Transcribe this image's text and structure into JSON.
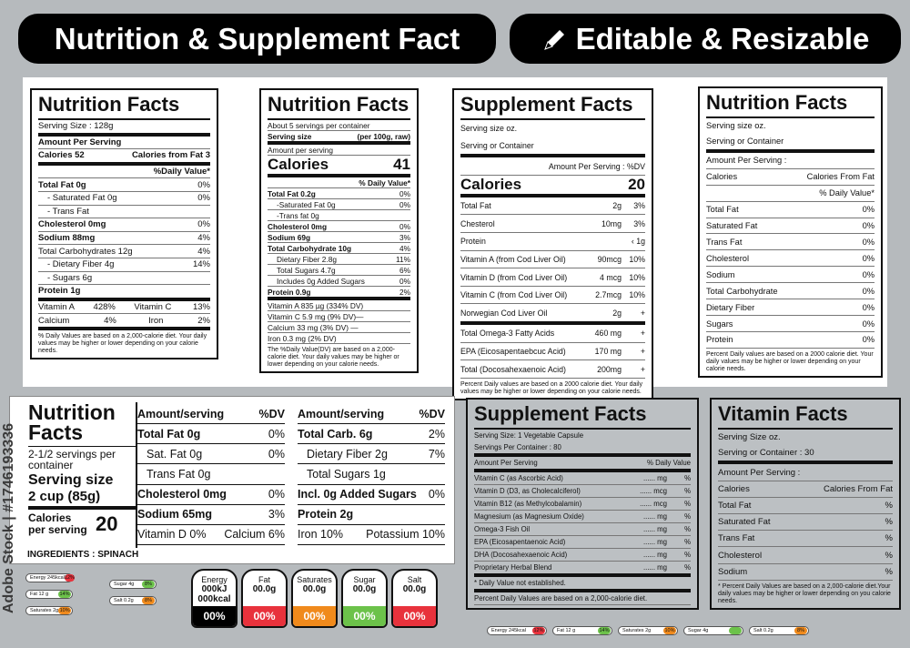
{
  "banner": {
    "left": "Nutrition & Supplement Fact",
    "right": "Editable & Resizable"
  },
  "labels": [
    {
      "title": "Nutrition Facts",
      "rows": [
        [
          "Serving Size : 128g"
        ],
        [
          "Amount Per Serving"
        ],
        [
          "Calories 52",
          "Calories from Fat 3"
        ],
        [
          "%Daily Value*"
        ],
        [
          "Total Fat  0g",
          "0%"
        ],
        [
          "- Saturated Fat  0g",
          "0%"
        ],
        [
          "- Trans Fat"
        ],
        [
          "Cholesterol  0mg",
          "0%"
        ],
        [
          "Sodium  88mg",
          "4%"
        ],
        [
          "Total Carbohydrates  12g",
          "4%"
        ],
        [
          "- Dietary Fiber  4g",
          "14%"
        ],
        [
          "- Sugars  6g"
        ],
        [
          "Protein  1g"
        ],
        [
          "Vitamin A",
          "428%",
          "Vitamin C",
          "13%"
        ],
        [
          "Calcium",
          "4%",
          "Iron",
          "2%"
        ]
      ],
      "note": "% Daily Values are based on a 2,000-calorie diet. Your daily values may be higher or lower depending on your calorie needs."
    },
    {
      "title": "Nutrition Facts",
      "rows": [
        [
          "About 5 servings per container"
        ],
        [
          "Serving size",
          "(per 100g, raw)"
        ],
        [
          "Amount per serving"
        ],
        [
          "Calories",
          "41"
        ],
        [
          "% Daily Value*"
        ],
        [
          "Total Fat 0.2g",
          "0%"
        ],
        [
          "-Saturated  Fat 0g",
          "0%"
        ],
        [
          "-Trans fat  0g"
        ],
        [
          "Cholesterol 0mg",
          "0%"
        ],
        [
          "Sodium 69g",
          "3%"
        ],
        [
          "Total Carbohydrate 10g",
          "4%"
        ],
        [
          "Dietary Fiber  2.8g",
          "11%"
        ],
        [
          "Total  Sugars 4.7g",
          "6%"
        ],
        [
          "Includes 0g Added Sugars",
          "0%"
        ],
        [
          "Protein 0.9g",
          "2%"
        ],
        [
          "Vitamin A  835 µg (334% DV)"
        ],
        [
          "Vitamin C 5.9 mg (9% DV)—"
        ],
        [
          "Calcium 33 mg (3% DV) —"
        ],
        [
          "Iron 0.3 mg (2% DV)"
        ]
      ],
      "note": "The %Daily Value(DV) are based on a 2,000-calorie diet. Your daily values may be higher or lower depending on your calorie needs."
    },
    {
      "title": "Supplement Facts",
      "rows": [
        [
          "Serving size oz."
        ],
        [
          "Serving or Container"
        ],
        [
          "Amount Per Serving : %DV"
        ],
        [
          "Calories",
          "20"
        ],
        [
          "Total Fat",
          "2g",
          "3%"
        ],
        [
          "Chesterol",
          "10mg",
          "3%"
        ],
        [
          "Protein",
          "‹ 1g"
        ],
        [
          "Vitamin A (from Cod Liver Oil)",
          "90mcg",
          "10%"
        ],
        [
          "Vitamin D (from Cod Liver Oil)",
          "4 mcg",
          "10%"
        ],
        [
          "Vitamin C (from Cod Liver Oil)",
          "2.7mcg",
          "10%"
        ],
        [
          "Norwegian Cod Liver Oil",
          "2g",
          "+"
        ],
        [
          "Total Omega-3 Fatty Acids",
          "460 mg",
          "+"
        ],
        [
          "EPA (Eicosapentaebcuc Acid)",
          "170 mg",
          "+"
        ],
        [
          "Total (Docosahexaenoic Acid)",
          "200mg",
          "+"
        ]
      ],
      "note": "Percent Daily values are based on a 2000 calorie diet. Your daily values may be higher or lower depending on your calorie needs."
    },
    {
      "title": "Nutrition Facts",
      "rows": [
        [
          "Serving size oz."
        ],
        [
          "Serving or Container"
        ],
        [
          "Amount Per Serving :"
        ],
        [
          "Calories",
          "Calories From Fat"
        ],
        [
          "% Daily Value*"
        ],
        [
          "Total Fat",
          "0%"
        ],
        [
          "Saturated Fat",
          "0%"
        ],
        [
          "Trans  Fat",
          "0%"
        ],
        [
          "Cholesterol",
          "0%"
        ],
        [
          "Sodium",
          "0%"
        ],
        [
          "Total Carbohydrate",
          "0%"
        ],
        [
          "Dietary Fiber",
          "0%"
        ],
        [
          "Sugars",
          "0%"
        ],
        [
          "Protein",
          "0%"
        ]
      ],
      "note": "Percent Daily values are based on a 2000 calorie diet. Your daily values may be higher or lower depending on your calorie needs."
    },
    {
      "title": "Supplement Facts",
      "rows": [
        [
          "Serving Size: 1 Vegetable Capsule"
        ],
        [
          "Servings Per Container : 80"
        ],
        [
          "Amount Per Serving",
          "% Daily Value"
        ],
        [
          "Vitamin C (as Ascorbic Acid)",
          "...... mg",
          "%"
        ],
        [
          "Vitamin D (D3, as Cholecalciferol)",
          "...... mcg",
          "%"
        ],
        [
          "Vitamin B12 (as Methylcobalamin)",
          "...... mcg",
          "%"
        ],
        [
          "Magnesium (as Magnesium Oxide)",
          "...... mg",
          "%"
        ],
        [
          "Omega-3 Fish Oil",
          "...... mg",
          "%"
        ],
        [
          "EPA (Eicosapentaenoic Acid)",
          "...... mg",
          "%"
        ],
        [
          "DHA (Docosahexaenoic Acid)",
          "...... mg",
          "%"
        ],
        [
          "Proprietary Herbal Blend",
          "...... mg",
          "%"
        ],
        [
          "* Daily Value not established."
        ],
        [
          "Percent Daily Values are based on a 2,000-calorie diet."
        ]
      ]
    },
    {
      "title": "Vitamin Facts",
      "rows": [
        [
          "Serving Size  oz."
        ],
        [
          "Serving or Container : 30"
        ],
        [
          "Amount Per Serving :"
        ],
        [
          "Calories",
          "Calories From Fat"
        ],
        [
          "Total Fat",
          "%"
        ],
        [
          "Saturated Fat",
          "%"
        ],
        [
          "Trans Fat",
          "%"
        ],
        [
          "Cholesterol",
          "%"
        ],
        [
          "Sodium",
          "%"
        ]
      ],
      "note": "*  Percent Daily Values are based on a 2,000-calorie diet.Your daily values may be higher or lower depending on you calorie needs."
    }
  ],
  "wide": {
    "title": "Nutrition Facts",
    "servings": "2-1/2 servings per container",
    "serving_label": "Serving size",
    "serving_size": "2 cup   (85g)",
    "calories_label": "Calories per serving",
    "calories": "20",
    "columns": [
      [
        [
          "Amount/serving",
          "%DV"
        ],
        [
          "Total Fat 0g",
          "0%"
        ],
        [
          "Sat. Fat 0g",
          "0%"
        ],
        [
          "Trans Fat 0g"
        ],
        [
          "Cholesterol  0mg",
          "0%"
        ],
        [
          "Sodium 65mg",
          "3%"
        ],
        [
          "Vitamin D 0%",
          "Calcium 6%"
        ]
      ],
      [
        [
          "Amount/serving",
          "%DV"
        ],
        [
          "Total Carb. 6g",
          "2%"
        ],
        [
          "Dietary Fiber 2g",
          "7%"
        ],
        [
          "Total Sugars 1g"
        ],
        [
          "Incl. 0g Added Sugars",
          "0%"
        ],
        [
          "Protein 2g"
        ],
        [
          "Iron 10%",
          "Potassium 10%"
        ]
      ]
    ],
    "ingredients": "INGREDIENTS : SPINACH"
  },
  "tiles": [
    {
      "name": "Energy",
      "amounts": [
        "000kJ",
        "000kcal"
      ],
      "pct": "00%",
      "color": "#000000"
    },
    {
      "name": "Fat",
      "amounts": [
        "00.0g"
      ],
      "pct": "00%",
      "color": "#e8323c"
    },
    {
      "name": "Saturates",
      "amounts": [
        "00.0g"
      ],
      "pct": "00%",
      "color": "#f08a1c"
    },
    {
      "name": "Sugar",
      "amounts": [
        "00.0g"
      ],
      "pct": "00%",
      "color": "#6cc24a"
    },
    {
      "name": "Salt",
      "amounts": [
        "00.0g"
      ],
      "pct": "00%",
      "color": "#e8323c"
    }
  ],
  "pills": [
    {
      "text": "Energy 245kcal",
      "pct": "12%",
      "color": "#e8323c"
    },
    {
      "text": "Fat 12 g",
      "pct": "14%",
      "color": "#6cc24a"
    },
    {
      "text": "Saturates 2g",
      "pct": "10%",
      "color": "#f08a1c"
    },
    {
      "text": "Sugar 4g",
      "pct": "8%",
      "color": "#6cc24a"
    },
    {
      "text": "Salt 0.2g",
      "pct": "8%",
      "color": "#f08a1c"
    }
  ],
  "strip": [
    {
      "text": "Energy 245kcal",
      "pct": "12%",
      "color": "#e8323c"
    },
    {
      "text": "Fat 12 g",
      "pct": "14%",
      "color": "#6cc24a"
    },
    {
      "text": "Saturates 2g",
      "pct": "10%",
      "color": "#f08a1c"
    },
    {
      "text": "Sugar 4g",
      "color": "#6cc24a"
    },
    {
      "text": "Salt 0.2g",
      "pct": "8%",
      "color": "#f08a1c"
    }
  ],
  "watermark": "Adobe Stock | #1746193336"
}
